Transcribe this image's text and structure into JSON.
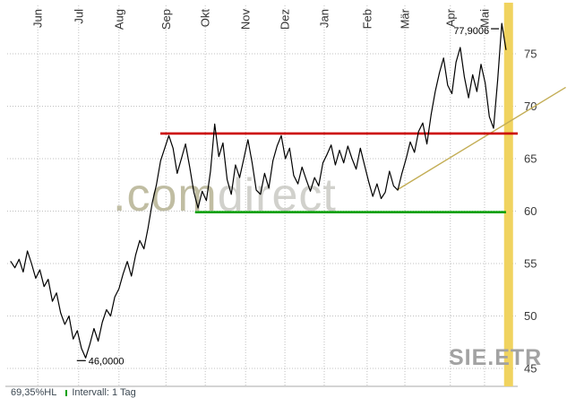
{
  "chart": {
    "symbol": "SIE.ETR",
    "watermark": {
      "prefix": ".com",
      "suffix": "direct"
    },
    "footer": {
      "hl_label": "69,35%HL",
      "interval_label": "Intervall: 1 Tag"
    }
  },
  "chart_data": {
    "type": "line",
    "title": "",
    "xlabel": "",
    "ylabel": "",
    "ylim": [
      43.2,
      79.5
    ],
    "yticks": [
      45,
      50,
      55,
      60,
      65,
      70,
      75
    ],
    "grid": "dotted",
    "x_months": [
      {
        "label": "Jun",
        "t": 0.06
      },
      {
        "label": "Jul",
        "t": 0.14
      },
      {
        "label": "Aug",
        "t": 0.219
      },
      {
        "label": "Sep",
        "t": 0.311
      },
      {
        "label": "Okt",
        "t": 0.388
      },
      {
        "label": "Nov",
        "t": 0.467
      },
      {
        "label": "Dez",
        "t": 0.544
      },
      {
        "label": "Jan",
        "t": 0.621
      },
      {
        "label": "Feb",
        "t": 0.705
      },
      {
        "label": "Mär",
        "t": 0.779
      },
      {
        "label": "Apr",
        "t": 0.868
      },
      {
        "label": "Mai",
        "t": 0.935
      }
    ],
    "series": [
      {
        "name": "SIE.ETR daily close",
        "color": "#000000",
        "t_start": 0.007,
        "t_end": 0.977,
        "values": [
          55.2,
          54.6,
          55.4,
          54.2,
          56.2,
          55.0,
          53.6,
          54.4,
          52.8,
          53.5,
          51.4,
          52.2,
          50.3,
          49.2,
          50.0,
          47.8,
          48.6,
          46.9,
          46.0,
          47.3,
          48.8,
          47.6,
          49.4,
          50.6,
          50.0,
          51.8,
          52.6,
          54.0,
          55.2,
          53.8,
          55.8,
          57.2,
          56.4,
          58.4,
          60.8,
          62.5,
          64.8,
          66.0,
          67.2,
          66.0,
          63.6,
          65.0,
          66.4,
          64.2,
          61.8,
          60.3,
          61.9,
          61.0,
          63.8,
          68.3,
          65.2,
          66.5,
          63.0,
          61.6,
          64.4,
          63.2,
          65.0,
          66.8,
          64.6,
          62.0,
          61.6,
          63.6,
          62.2,
          64.8,
          66.2,
          67.2,
          65.0,
          66.0,
          63.4,
          62.6,
          64.2,
          63.0,
          61.9,
          63.2,
          62.4,
          64.6,
          65.4,
          66.3,
          64.4,
          65.8,
          64.6,
          66.2,
          65.0,
          64.0,
          66.0,
          64.4,
          62.8,
          61.4,
          62.6,
          61.2,
          61.8,
          63.8,
          62.4,
          62.0,
          63.6,
          65.0,
          66.6,
          65.6,
          67.6,
          68.4,
          66.4,
          69.2,
          71.4,
          73.2,
          74.6,
          72.0,
          71.2,
          74.2,
          75.6,
          72.8,
          70.8,
          73.0,
          71.4,
          74.0,
          72.2,
          69.0,
          67.9,
          72.5,
          77.9,
          75.4
        ]
      }
    ],
    "overlays": {
      "resistance": {
        "name": "resistance line",
        "color": "#cc0000",
        "price": 67.4,
        "t1": 0.3,
        "t2": 1.0
      },
      "support": {
        "name": "support line",
        "color": "#00a000",
        "price": 59.9,
        "t1": 0.368,
        "t2": 0.977
      },
      "trend": {
        "name": "rising trend line",
        "color": "#c3ad55",
        "p1": {
          "t": 0.763,
          "price": 62.0
        },
        "p2": {
          "t": 1.094,
          "price": 71.8
        }
      },
      "today_band": {
        "name": "current day band",
        "color": "#f0d35f",
        "t": 0.982,
        "width": 10
      }
    },
    "annotations": {
      "high": {
        "label": "77,9006",
        "price": 77.9,
        "t": 0.944
      },
      "low": {
        "label": "46,0000",
        "price": 46.0,
        "t": 0.154
      }
    },
    "colors": {
      "grid": "#c0c0c0",
      "axis_text": "#3a3a3a",
      "price_line": "#000000"
    }
  }
}
